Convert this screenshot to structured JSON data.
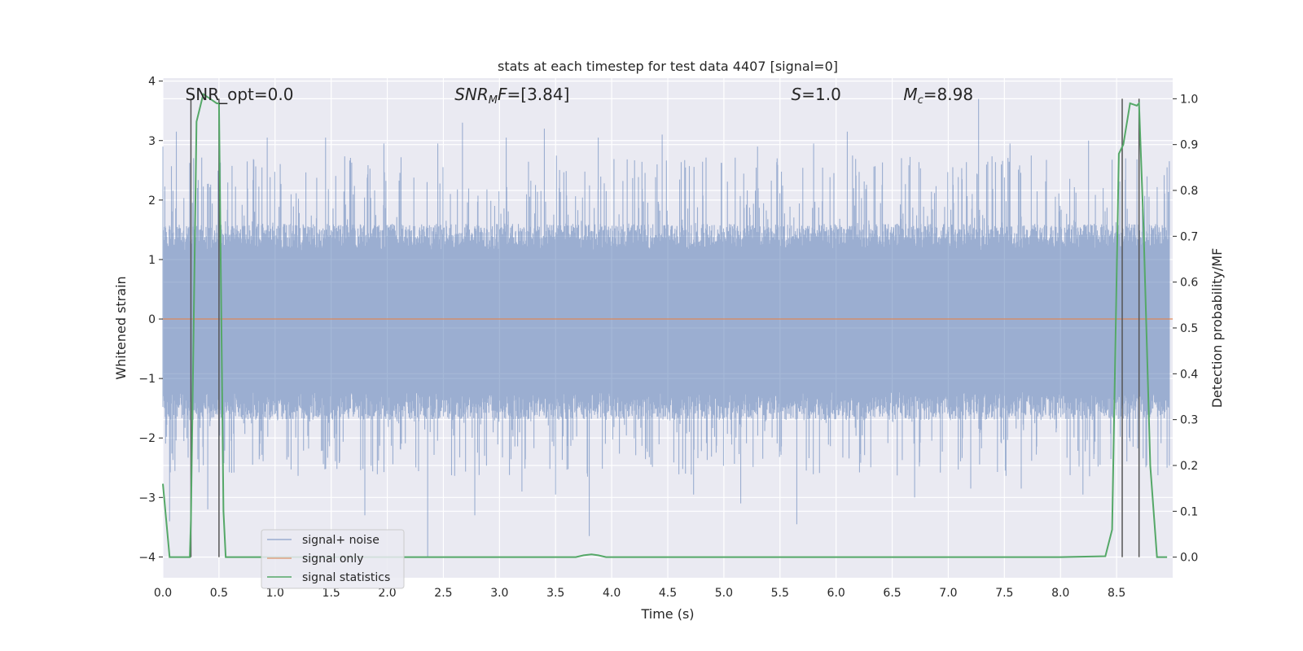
{
  "chart_data": {
    "type": "line",
    "title": "stats at each timestep for test data 4407 [signal=0]",
    "xlabel": "Time (s)",
    "ylabel": "Whitened strain",
    "ylabel_right": "Detection probability/MF",
    "xlim": [
      0.0,
      9.0
    ],
    "ylim": [
      -4.35,
      4.05
    ],
    "ylim_right": [
      -0.045,
      1.045
    ],
    "x_ticks": [
      "0.0",
      "0.5",
      "1.0",
      "1.5",
      "2.0",
      "2.5",
      "3.0",
      "3.5",
      "4.0",
      "4.5",
      "5.0",
      "5.5",
      "6.0",
      "6.5",
      "7.0",
      "7.5",
      "8.0",
      "8.5"
    ],
    "y_ticks": [
      "4",
      "3",
      "2",
      "1",
      "0",
      "−1",
      "−2",
      "−3",
      "−4"
    ],
    "y_right_ticks": [
      "1.0",
      "0.9",
      "0.8",
      "0.7",
      "0.6",
      "0.5",
      "0.4",
      "0.3",
      "0.2",
      "0.1",
      "0.0"
    ],
    "grid": true,
    "legend_position": "lower-left",
    "colors": {
      "noise": "#4c72b0",
      "signal_only": "#dd8452",
      "statistics": "#55a868",
      "vlines": "#555555",
      "background": "#eaeaf2"
    },
    "annotations": [
      {
        "parts": [
          {
            "t": "SNR_opt=0.0"
          }
        ],
        "x": 0.2
      },
      {
        "parts": [
          {
            "t": "SNR",
            "i": true
          },
          {
            "t": "M",
            "i": true,
            "sub": true
          },
          {
            "t": "F",
            "i": true
          },
          {
            "t": "=[3.84]"
          }
        ],
        "x": 2.6
      },
      {
        "parts": [
          {
            "t": "S",
            "i": true
          },
          {
            "t": "=1.0"
          }
        ],
        "x": 5.6
      },
      {
        "parts": [
          {
            "t": "M",
            "i": true
          },
          {
            "t": "c",
            "i": true,
            "sub": true
          },
          {
            "t": "=8.98"
          }
        ],
        "x": 6.6
      }
    ],
    "series": [
      {
        "name": "signal+ noise",
        "axis": "left",
        "style": "noise",
        "typical_range": [
          -1.7,
          1.6
        ],
        "max": 3.7,
        "min": -4.0,
        "peaks": [
          [
            0.0,
            2.9
          ],
          [
            0.12,
            3.15
          ],
          [
            0.25,
            3.05
          ],
          [
            0.5,
            2.95
          ],
          [
            0.93,
            3.05
          ],
          [
            1.45,
            3.05
          ],
          [
            1.97,
            2.95
          ],
          [
            2.45,
            2.95
          ],
          [
            2.67,
            3.3
          ],
          [
            3.06,
            3.05
          ],
          [
            3.4,
            3.2
          ],
          [
            3.88,
            3.05
          ],
          [
            4.45,
            3.1
          ],
          [
            5.3,
            2.9
          ],
          [
            5.8,
            2.95
          ],
          [
            6.1,
            3.15
          ],
          [
            7.27,
            3.7
          ],
          [
            7.55,
            2.95
          ],
          [
            8.25,
            3.0
          ],
          [
            8.55,
            3.25
          ],
          [
            8.95,
            2.55
          ]
        ],
        "troughs": [
          [
            0.06,
            -3.4
          ],
          [
            0.4,
            -3.2
          ],
          [
            1.8,
            -3.3
          ],
          [
            2.36,
            -4.0
          ],
          [
            2.78,
            -3.3
          ],
          [
            3.2,
            -2.9
          ],
          [
            3.5,
            -2.95
          ],
          [
            3.8,
            -3.65
          ],
          [
            4.73,
            -2.95
          ],
          [
            5.15,
            -3.1
          ],
          [
            5.65,
            -3.45
          ],
          [
            6.7,
            -3.0
          ],
          [
            7.2,
            -2.85
          ],
          [
            7.65,
            -2.85
          ],
          [
            8.2,
            -2.95
          ],
          [
            8.7,
            -2.85
          ],
          [
            8.95,
            -2.5
          ]
        ]
      },
      {
        "name": "signal only",
        "axis": "left",
        "style": "signal_only",
        "x": [
          0.0,
          9.0
        ],
        "y": [
          0.0,
          0.0
        ]
      },
      {
        "name": "signal statistics",
        "axis": "right",
        "style": "statistics",
        "x": [
          0.0,
          0.06,
          0.12,
          0.24,
          0.25,
          0.3,
          0.36,
          0.42,
          0.48,
          0.5,
          0.54,
          0.56,
          0.6,
          1.0,
          2.0,
          3.0,
          3.68,
          3.75,
          3.82,
          3.88,
          3.95,
          4.0,
          5.0,
          6.0,
          7.0,
          8.0,
          8.4,
          8.46,
          8.52,
          8.56,
          8.62,
          8.68,
          8.7,
          8.74,
          8.8,
          8.86,
          8.95
        ],
        "y": [
          0.16,
          0.0,
          0.0,
          0.0,
          0.08,
          0.95,
          1.01,
          1.0,
          0.99,
          0.99,
          0.1,
          0.0,
          0.0,
          0.0,
          0.0,
          0.0,
          0.0,
          0.004,
          0.006,
          0.004,
          0.0,
          0.0,
          0.0,
          0.0,
          0.0,
          0.0,
          0.002,
          0.06,
          0.88,
          0.9,
          0.99,
          0.985,
          0.99,
          0.72,
          0.2,
          0.0,
          0.0
        ]
      }
    ],
    "vertical_lines": [
      0.25,
      0.5,
      8.55,
      8.7
    ]
  },
  "legend": {
    "items": [
      {
        "label": "signal+ noise",
        "color": "#4c72b0"
      },
      {
        "label": "signal only",
        "color": "#dd8452"
      },
      {
        "label": "signal statistics",
        "color": "#55a868"
      }
    ]
  }
}
